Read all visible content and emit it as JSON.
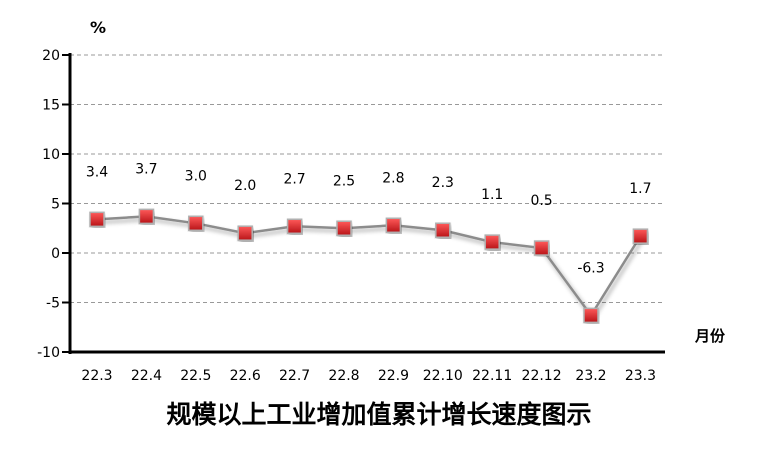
{
  "chart_data": {
    "type": "line",
    "title": "规模以上工业增加值累计增长速度图示",
    "ylabel": "%",
    "xlabel": "月份",
    "categories": [
      "22.3",
      "22.4",
      "22.5",
      "22.6",
      "22.7",
      "22.8",
      "22.9",
      "22.10",
      "22.11",
      "22.12",
      "23.2",
      "23.3"
    ],
    "values": [
      3.4,
      3.7,
      3.0,
      2.0,
      2.7,
      2.5,
      2.8,
      2.3,
      1.1,
      0.5,
      -6.3,
      1.7
    ],
    "data_labels": [
      "3.4",
      "3.7",
      "3.0",
      "2.0",
      "2.7",
      "2.5",
      "2.8",
      "2.3",
      "1.1",
      "0.5",
      "-6.3",
      "1.7"
    ],
    "ylim": [
      -10,
      20
    ],
    "yticks": [
      "-10",
      "-5",
      "0",
      "5",
      "10",
      "15",
      "20"
    ],
    "grid": true,
    "colors": {
      "line": "#8c8c8c",
      "marker": "#e0252b",
      "grid": "#999999"
    }
  }
}
